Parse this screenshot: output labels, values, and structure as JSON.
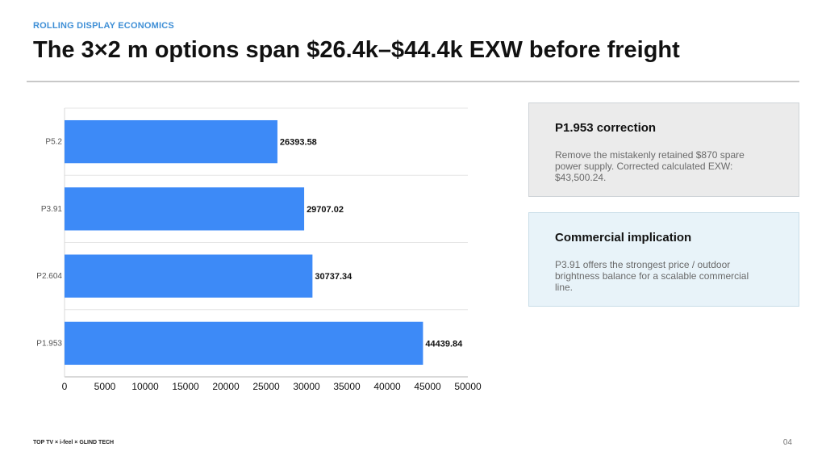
{
  "header": {
    "eyebrow": "ROLLING DISPLAY ECONOMICS",
    "title": "The 3×2 m options span $26.4k–$44.4k EXW before freight"
  },
  "chart_data": {
    "type": "bar",
    "orientation": "horizontal",
    "categories": [
      "P5.2",
      "P3.91",
      "P2.604",
      "P1.953"
    ],
    "values": [
      26393.58,
      29707.02,
      30737.34,
      44439.84
    ],
    "value_labels": [
      "26393.58",
      "29707.02",
      "30737.34",
      "44439.84"
    ],
    "xlim": [
      0,
      50000
    ],
    "x_ticks": [
      0,
      5000,
      10000,
      15000,
      20000,
      25000,
      30000,
      35000,
      40000,
      45000,
      50000
    ],
    "bar_color": "#3d8af7",
    "grid": true,
    "title": "",
    "xlabel": "",
    "ylabel": ""
  },
  "cards": [
    {
      "title": "P1.953 correction",
      "body": "Remove the mistakenly retained $870 spare power supply. Corrected calculated EXW: $43,500.24."
    },
    {
      "title": "Commercial implication",
      "body": "P3.91 offers the strongest price / outdoor brightness balance for a scalable commercial line."
    }
  ],
  "footer": {
    "credit": "TOP TV × i-feel × GLIND TECH",
    "page": "04"
  }
}
